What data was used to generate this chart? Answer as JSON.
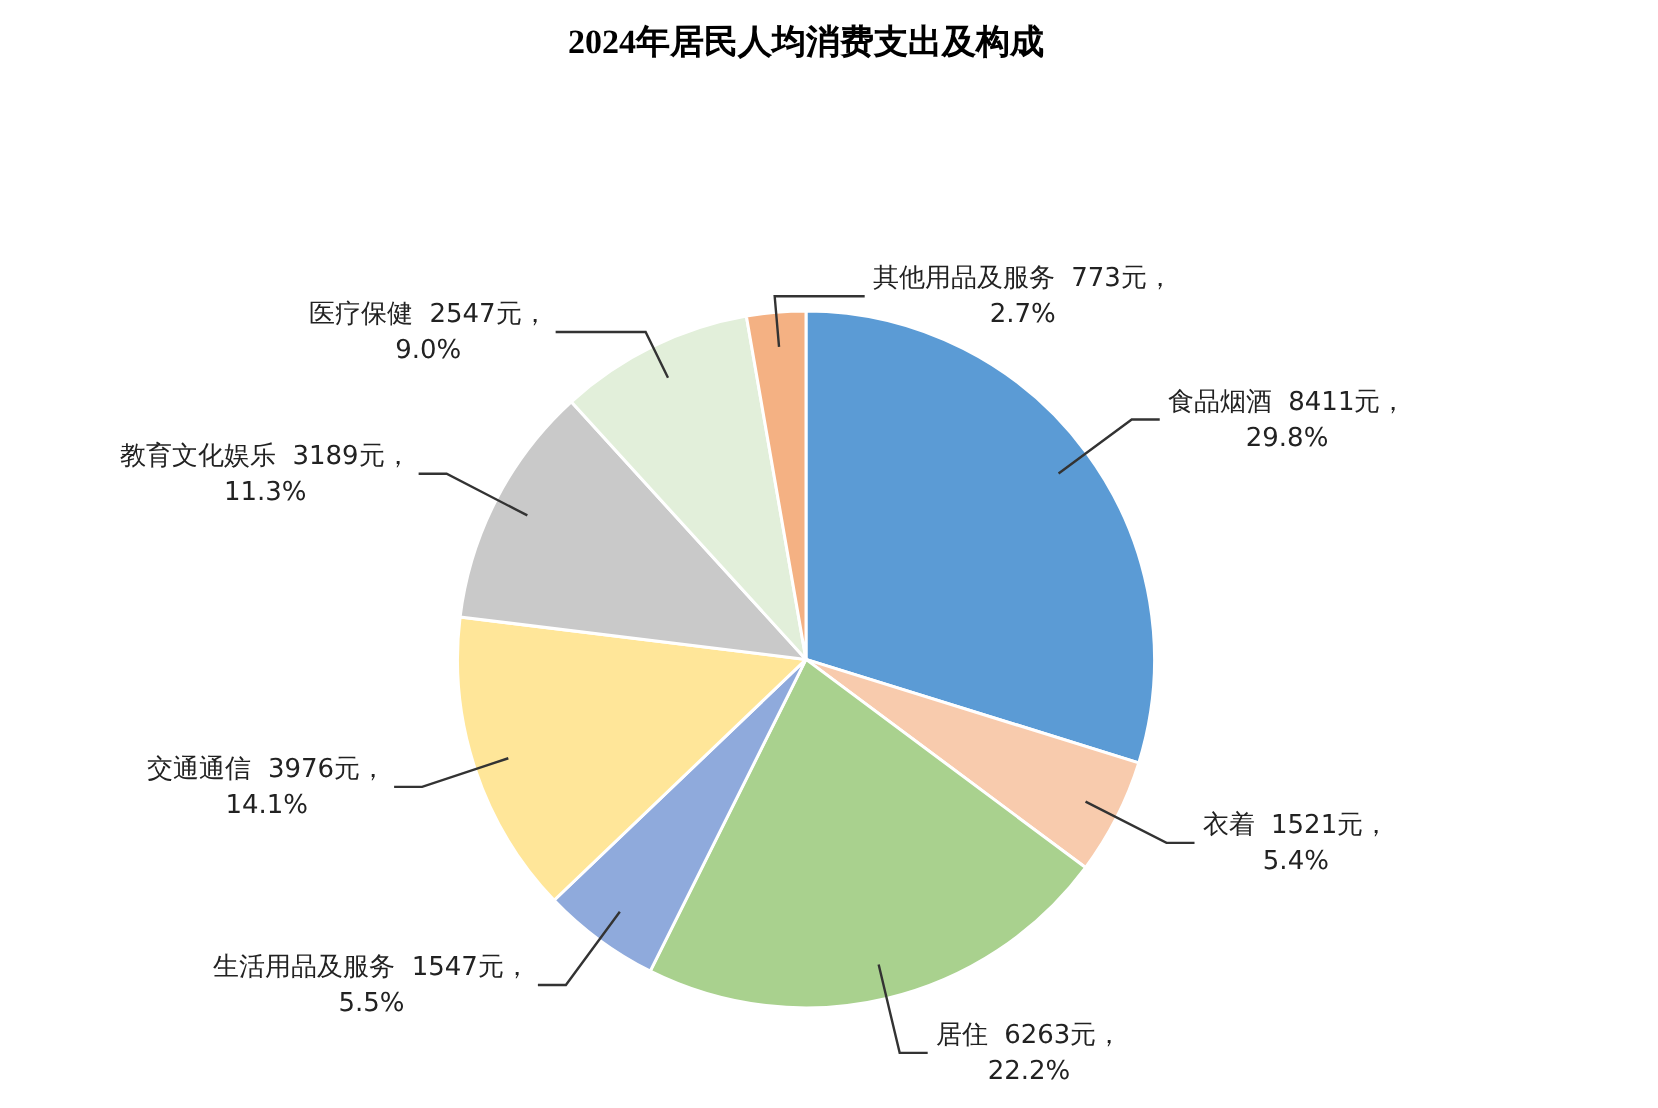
{
  "chart_data": {
    "type": "pie",
    "title": "2024年居民人均消费支出及构成",
    "categories": [
      "食品烟酒",
      "衣着",
      "居住",
      "生活用品及服务",
      "交通通信",
      "教育文化娱乐",
      "医疗保健",
      "其他用品及服务"
    ],
    "values": [
      8411,
      1521,
      6263,
      1547,
      3976,
      3189,
      2547,
      773
    ],
    "value_labels": [
      "8411元，\n29.8%",
      "1521元，\n5.4%",
      "6263元，\n22.2%",
      "1547元，\n5.5%",
      "3976元，\n14.1%",
      "3189元，\n11.3%",
      "2547元，\n9.0%",
      "773元，\n2.7%"
    ],
    "colors": [
      "#5b9bd5",
      "#f8cbad",
      "#a9d18e",
      "#8faadc",
      "#ffe699",
      "#c9c9c9",
      "#e2efda",
      "#f4b183"
    ],
    "legend": false
  }
}
